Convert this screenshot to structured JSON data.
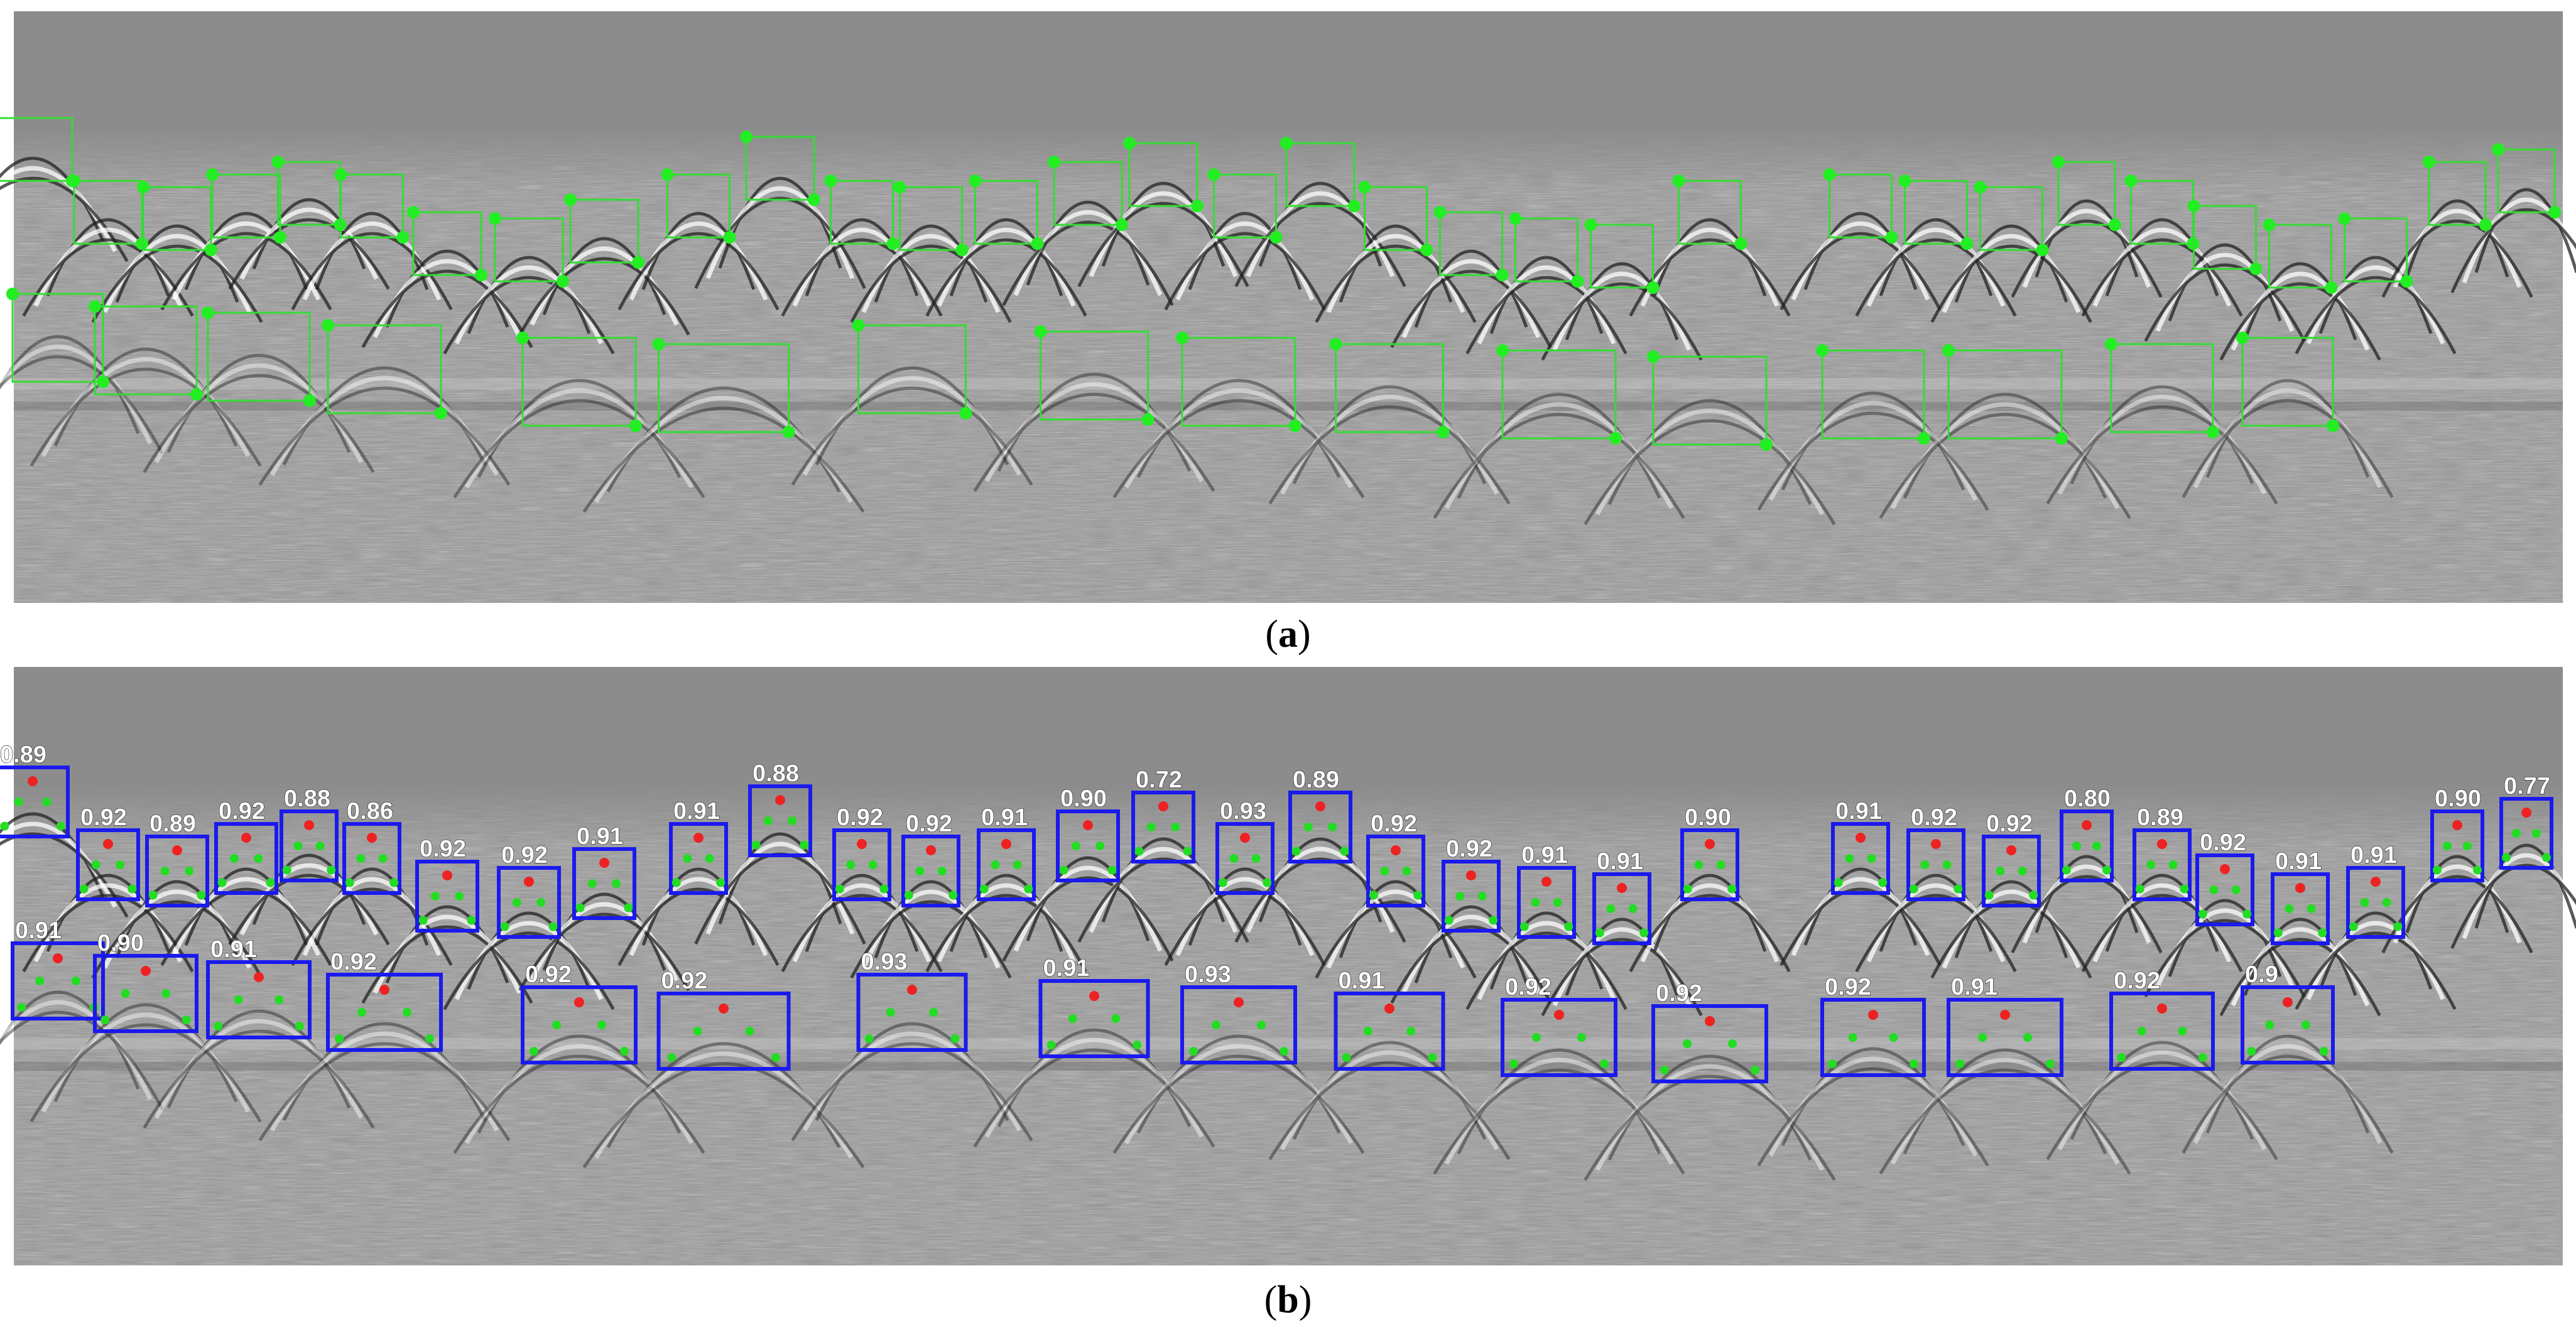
{
  "captions": {
    "a": "a",
    "b": "b"
  },
  "colors": {
    "annotation_box": "#33dd33",
    "annotation_point": "#22ee22",
    "detection_box": "#1a1aee",
    "apex_point": "#ee2222",
    "fit_point": "#22dd22",
    "score_text": "#ffffff"
  },
  "detections": {
    "row1_scores": [
      "0.89",
      "0.92",
      "0.89",
      "0.92",
      "0.88",
      "0.86",
      "0.92",
      "0.92",
      "0.91",
      "0.91",
      "0.88",
      "0.92",
      "0.92",
      "0.91",
      "0.90",
      "0.72",
      "0.93",
      "0.89",
      "0.92",
      "0.92",
      "0.91",
      "0.91",
      "0.90",
      "0.91",
      "0.92",
      "0.92",
      "0.80",
      "0.89",
      "0.92",
      "0.91",
      "0.91",
      "0.90",
      "0.77"
    ],
    "row2_scores": [
      "0.91",
      "0.90",
      "0.91",
      "0.92",
      "0.92",
      "0.92",
      "0.93",
      "0.91",
      "0.93",
      "0.91",
      "0.92",
      "0.92",
      "0.92",
      "0.91",
      "0.92",
      "0.9"
    ]
  }
}
